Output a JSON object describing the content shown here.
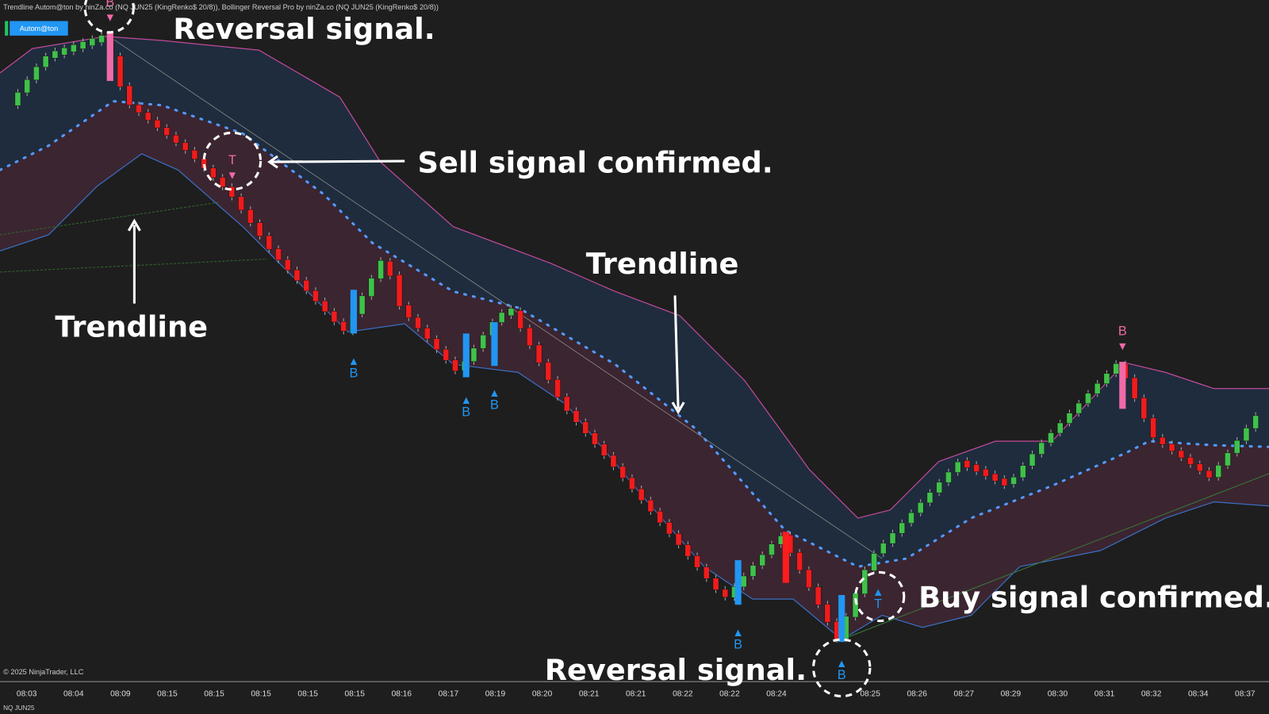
{
  "header": {
    "title": "Trendline Autom@ton by ninZa.co (NQ JUN25 (KingRenko$ 20/8)), Bollinger Reversal Pro by ninZa.co (NQ JUN25 (KingRenko$ 20/8))",
    "button": "Autom@ton"
  },
  "annotations": {
    "reversal_top": "Reversal signal.",
    "sell": "Sell signal confirmed.",
    "trendline_left": "Trendline",
    "trendline_mid": "Trendline",
    "buy": "Buy signal confirmed.",
    "reversal_bottom": "Reversal signal."
  },
  "signals": [
    "B",
    "T",
    "B",
    "B",
    "B",
    "B",
    "B",
    "T",
    "B"
  ],
  "time_axis": [
    "08:03",
    "08:04",
    "08:09",
    "08:15",
    "08:15",
    "08:15",
    "08:15",
    "08:15",
    "08:16",
    "08:17",
    "08:19",
    "08:20",
    "08:21",
    "08:21",
    "08:22",
    "08:22",
    "08:24",
    null,
    "08:25",
    "08:26",
    "08:27",
    "08:29",
    "08:30",
    "08:31",
    "08:32",
    "08:34",
    "08:37"
  ],
  "footer": {
    "copyright": "© 2025 NinjaTrader, LLC",
    "instrument": "NQ JUN25"
  }
}
